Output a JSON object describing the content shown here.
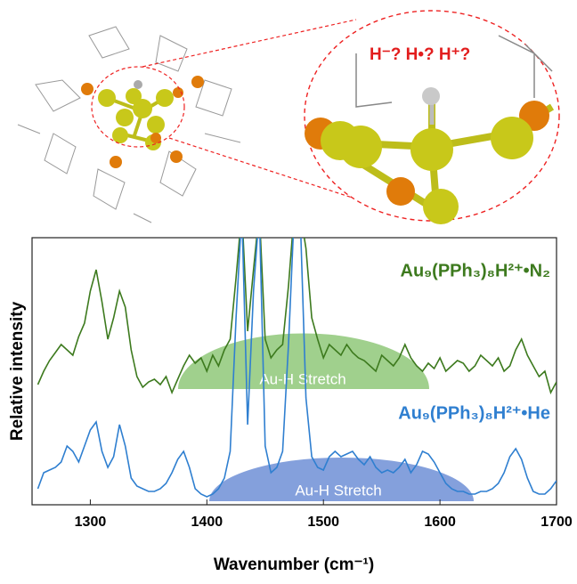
{
  "inset": {
    "label": "H⁻? H•? H⁺?"
  },
  "chart_data": {
    "type": "line",
    "xlabel": "Wavenumber (cm⁻¹)",
    "ylabel": "Relative intensity",
    "xlim": [
      1250,
      1700
    ],
    "xticks": [
      1300,
      1400,
      1500,
      1600,
      1700
    ],
    "ylim": [
      0,
      100
    ],
    "annotations": [
      "Au-H Stretch",
      "Au-H Stretch"
    ],
    "x": [
      1255,
      1260,
      1265,
      1270,
      1275,
      1280,
      1285,
      1290,
      1295,
      1300,
      1305,
      1310,
      1315,
      1320,
      1325,
      1330,
      1335,
      1340,
      1345,
      1350,
      1355,
      1360,
      1365,
      1370,
      1375,
      1380,
      1385,
      1390,
      1395,
      1400,
      1405,
      1410,
      1415,
      1420,
      1425,
      1430,
      1435,
      1440,
      1445,
      1450,
      1455,
      1460,
      1465,
      1470,
      1475,
      1480,
      1485,
      1490,
      1495,
      1500,
      1505,
      1510,
      1515,
      1520,
      1525,
      1530,
      1535,
      1540,
      1545,
      1550,
      1555,
      1560,
      1565,
      1570,
      1575,
      1580,
      1585,
      1590,
      1595,
      1600,
      1605,
      1610,
      1615,
      1620,
      1625,
      1630,
      1635,
      1640,
      1645,
      1650,
      1655,
      1660,
      1665,
      1670,
      1675,
      1680,
      1685,
      1690,
      1695,
      1700
    ],
    "series": [
      {
        "name": "Au₉(PPh₃)₈H²⁺•N₂",
        "color": "#3d7a1e",
        "values": [
          45,
          50,
          54,
          57,
          60,
          58,
          56,
          63,
          68,
          80,
          88,
          76,
          62,
          70,
          80,
          74,
          58,
          48,
          44,
          46,
          47,
          45,
          48,
          42,
          47,
          52,
          56,
          53,
          55,
          50,
          56,
          52,
          58,
          62,
          85,
          110,
          65,
          88,
          110,
          62,
          55,
          58,
          60,
          82,
          110,
          110,
          96,
          70,
          62,
          55,
          60,
          58,
          56,
          60,
          57,
          55,
          54,
          52,
          50,
          56,
          54,
          52,
          55,
          60,
          55,
          52,
          50,
          53,
          51,
          55,
          50,
          52,
          54,
          53,
          50,
          52,
          56,
          54,
          52,
          55,
          50,
          52,
          58,
          62,
          56,
          52,
          48,
          50,
          42,
          46
        ]
      },
      {
        "name": "Au₉(PPh₃)₈H²⁺•He",
        "color": "#2f7fd0",
        "values": [
          6,
          12,
          13,
          14,
          16,
          22,
          20,
          16,
          22,
          28,
          31,
          20,
          14,
          18,
          30,
          22,
          10,
          7,
          6,
          5,
          5,
          6,
          8,
          12,
          17,
          20,
          14,
          6,
          4,
          3,
          4,
          6,
          10,
          20,
          70,
          110,
          30,
          80,
          110,
          22,
          12,
          14,
          20,
          60,
          110,
          110,
          40,
          18,
          14,
          13,
          18,
          20,
          18,
          19,
          20,
          17,
          15,
          18,
          14,
          12,
          13,
          12,
          14,
          17,
          12,
          15,
          20,
          19,
          16,
          12,
          8,
          6,
          5,
          5,
          4,
          4,
          5,
          5,
          6,
          8,
          12,
          18,
          21,
          17,
          10,
          5,
          4,
          4,
          6,
          9
        ]
      }
    ]
  }
}
